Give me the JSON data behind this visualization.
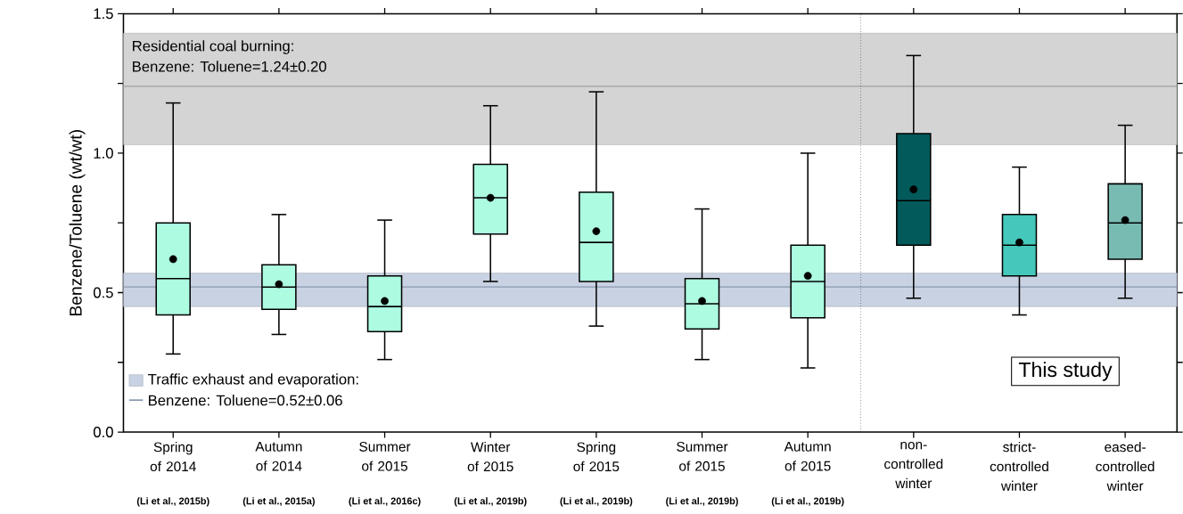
{
  "chart_data": {
    "type": "box",
    "ylabel": "Benzene/Toluene (wt/wt)",
    "categories": [
      "Spring of 2014",
      "Autumn of 2014",
      "Summer of 2015",
      "Winter of 2015",
      "Spring of 2015",
      "Summer of 2015",
      "Autumn of 2015",
      "non-controlled winter",
      "strict-controlled winter",
      "eased-controlled winter"
    ],
    "colors": [
      "#adfce2",
      "#adfce2",
      "#adfce2",
      "#adfce2",
      "#adfce2",
      "#adfce2",
      "#adfce2",
      "#035a5a",
      "#45c8bb",
      "#78bbb3"
    ],
    "boxes": [
      {
        "low": 0.28,
        "q1": 0.42,
        "median": 0.55,
        "q3": 0.75,
        "high": 1.18,
        "mean": 0.62
      },
      {
        "low": 0.35,
        "q1": 0.44,
        "median": 0.52,
        "q3": 0.6,
        "high": 0.78,
        "mean": 0.53
      },
      {
        "low": 0.26,
        "q1": 0.36,
        "median": 0.45,
        "q3": 0.56,
        "high": 0.76,
        "mean": 0.47
      },
      {
        "low": 0.54,
        "q1": 0.71,
        "median": 0.84,
        "q3": 0.96,
        "high": 1.17,
        "mean": 0.84
      },
      {
        "low": 0.38,
        "q1": 0.54,
        "median": 0.68,
        "q3": 0.86,
        "high": 1.22,
        "mean": 0.72
      },
      {
        "low": 0.26,
        "q1": 0.37,
        "median": 0.46,
        "q3": 0.55,
        "high": 0.8,
        "mean": 0.47
      },
      {
        "low": 0.23,
        "q1": 0.41,
        "median": 0.54,
        "q3": 0.67,
        "high": 1.0,
        "mean": 0.56
      },
      {
        "low": 0.48,
        "q1": 0.67,
        "median": 0.83,
        "q3": 1.07,
        "high": 1.35,
        "mean": 0.87
      },
      {
        "low": 0.42,
        "q1": 0.56,
        "median": 0.67,
        "q3": 0.78,
        "high": 0.95,
        "mean": 0.68
      },
      {
        "low": 0.48,
        "q1": 0.62,
        "median": 0.75,
        "q3": 0.89,
        "high": 1.1,
        "mean": 0.76
      }
    ],
    "ylim": [
      0,
      1.5
    ],
    "legend": "bottom left",
    "yticks": [
      {
        "value": 0,
        "label": "0.0"
      },
      {
        "value": 0.25,
        "label": null
      },
      {
        "value": 0.5,
        "label": "0.5"
      },
      {
        "value": 0.75,
        "label": null
      },
      {
        "value": 1.0,
        "label": "1.0"
      },
      {
        "value": 1.25,
        "label": null
      },
      {
        "value": 1.5,
        "label": "1.5"
      }
    ],
    "bands": [
      {
        "axis": "y",
        "from": 1.03,
        "to": 1.43,
        "label": "Residential coal burning:",
        "color": "#d4d4d4"
      },
      {
        "axis": "y",
        "from": 0.45,
        "to": 0.57,
        "label": "Traffic exhaust and evaporation:",
        "color": "#c9d2e2"
      }
    ],
    "ref_lines": [
      {
        "axis": "y",
        "value": 1.24,
        "label": "Benzene: Toluene=1.24±0.20",
        "color": "#a0a0a0"
      },
      {
        "axis": "y",
        "value": 0.52,
        "label": "Benzene: Toluene=0.52±0.06",
        "color": "#8a98b0"
      }
    ],
    "annotations": [
      "(Li et al., 2015b)",
      "(Li et al., 2015a)",
      "(Li et al., 2016c)",
      "(Li et al., 2019b)",
      "(Li et al., 2019b)",
      "(Li et al., 2019b)",
      "(Li et al., 2019b)",
      "This study"
    ]
  }
}
